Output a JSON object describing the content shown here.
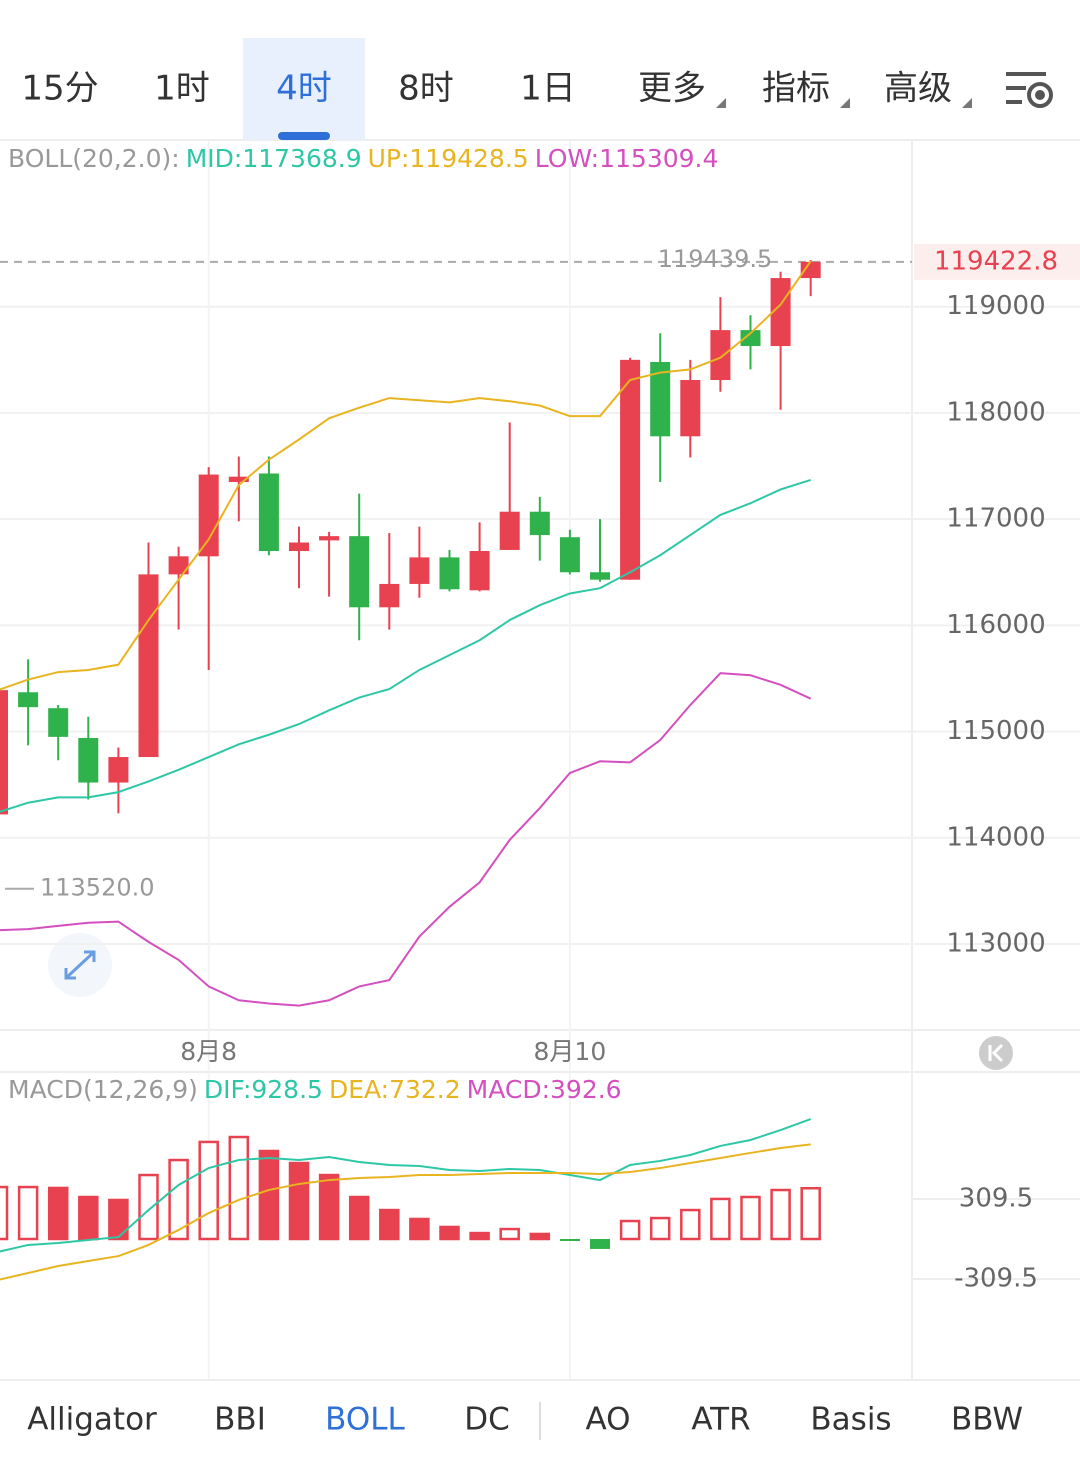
{
  "tabs": {
    "items": [
      "15分",
      "1时",
      "4时",
      "8时",
      "1日",
      "更多",
      "指标",
      "高级"
    ],
    "selected": 2
  },
  "chart_data": [
    {
      "type": "candlestick",
      "indicator": "BOLL(20,2.0):",
      "categories": [
        null,
        null,
        null,
        null,
        null,
        null,
        null,
        "8月8",
        null,
        null,
        null,
        null,
        null,
        null,
        null,
        null,
        null,
        null,
        null,
        "8月10",
        null,
        null,
        null,
        null,
        null,
        null,
        null,
        null
      ],
      "open": [
        114220,
        115370,
        115220,
        114940,
        114520,
        114760,
        116480,
        116650,
        117350,
        117430,
        116700,
        116800,
        116840,
        116170,
        116390,
        116640,
        116330,
        116710,
        117070,
        116830,
        116500,
        116430,
        118480,
        117780,
        118310,
        118780,
        118630,
        119270
      ],
      "high": [
        115440,
        115680,
        115250,
        115140,
        114850,
        116780,
        116740,
        117490,
        117590,
        117590,
        116930,
        116880,
        117240,
        116870,
        116930,
        116710,
        116970,
        117910,
        117210,
        116900,
        117000,
        118520,
        118750,
        118500,
        119090,
        118920,
        119330,
        119439.5
      ],
      "low": [
        114190,
        114870,
        114730,
        114360,
        114230,
        114760,
        115960,
        115580,
        116980,
        116660,
        116350,
        116270,
        115860,
        115960,
        116260,
        116320,
        116320,
        116710,
        116610,
        116480,
        116410,
        116430,
        117350,
        117580,
        118200,
        118410,
        118030,
        119100
      ],
      "close": [
        115390,
        115230,
        114950,
        114520,
        114760,
        116480,
        116650,
        117420,
        117400,
        116700,
        116780,
        116840,
        116170,
        116390,
        116640,
        116340,
        116700,
        117070,
        116850,
        116500,
        116430,
        118500,
        117780,
        118310,
        118780,
        118630,
        119270,
        119422.8
      ],
      "up_color": "#e8414f",
      "down_color": "#2fb24c",
      "series": [
        {
          "name": "MID:117368.9",
          "color": "#2ec7a6",
          "values": [
            114240,
            114330,
            114380,
            114380,
            114430,
            114530,
            114640,
            114760,
            114880,
            114970,
            115070,
            115200,
            115320,
            115400,
            115580,
            115720,
            115860,
            116050,
            116190,
            116300,
            116350,
            116500,
            116660,
            116850,
            117040,
            117150,
            117280,
            117368.9
          ]
        },
        {
          "name": "UP:119428.5",
          "color": "#e8b420",
          "values": [
            115390,
            115490,
            115560,
            115580,
            115630,
            116050,
            116430,
            116810,
            117320,
            117560,
            117750,
            117950,
            118050,
            118140,
            118120,
            118100,
            118140,
            118110,
            118070,
            117970,
            117970,
            118310,
            118380,
            118410,
            118520,
            118750,
            119020,
            119428.5
          ]
        },
        {
          "name": "LOW:115309.4",
          "color": "#d44fbf",
          "values": [
            113130,
            113140,
            113170,
            113200,
            113210,
            113020,
            112850,
            112600,
            112470,
            112440,
            112420,
            112470,
            112600,
            112660,
            113070,
            113350,
            113580,
            113980,
            114280,
            114610,
            114720,
            114710,
            114920,
            115250,
            115550,
            115530,
            115440,
            115309.4
          ]
        }
      ],
      "ylim": [
        112190,
        120570
      ],
      "yticks": [
        113000,
        114000,
        115000,
        116000,
        117000,
        118000,
        119000
      ],
      "last_price": 119422.8,
      "annotations": [
        {
          "value": 119439.5
        },
        {
          "value": 113520,
          "label": "113520.0"
        }
      ]
    },
    {
      "type": "macd",
      "indicator": "MACD(12,26,9)",
      "series": [
        {
          "name": "DIF:928.5",
          "color": "#2ec7a6",
          "values": [
            -100,
            -46,
            -31,
            -8,
            15,
            224,
            418,
            549,
            611,
            627,
            611,
            634,
            596,
            573,
            565,
            534,
            526,
            542,
            534,
            495,
            456,
            573,
            604,
            650,
            720,
            766,
            843,
            928.5
          ]
        },
        {
          "name": "DEA:732.2",
          "color": "#e8b420",
          "values": [
            -317,
            -263,
            -209,
            -170,
            -132,
            -46,
            70,
            201,
            302,
            379,
            426,
            456,
            472,
            480,
            495,
            495,
            503,
            511,
            511,
            511,
            503,
            518,
            549,
            588,
            627,
            666,
            704,
            732.2
          ]
        }
      ],
      "histogram": {
        "name": "MACD:392.6",
        "color": "#d44fbf",
        "up_color": "#e8414f",
        "down_color": "#2fb24c",
        "values": [
          402,
          402,
          395,
          325,
          302,
          495,
          611,
          751,
          789,
          681,
          588,
          495,
          325,
          224,
          155,
          93,
          46,
          77,
          39,
          -15,
          -77,
          139,
          162,
          224,
          310,
          325,
          379,
          392.6
        ]
      },
      "ylim": [
        -1091,
        1269
      ],
      "yticks": [
        309.5,
        -309.5
      ]
    }
  ],
  "indicator_tabs": {
    "items": [
      "Alligator",
      "BBI",
      "BOLL",
      "DC",
      "AO",
      "ATR",
      "Basis",
      "BBW"
    ],
    "selected": 2
  }
}
